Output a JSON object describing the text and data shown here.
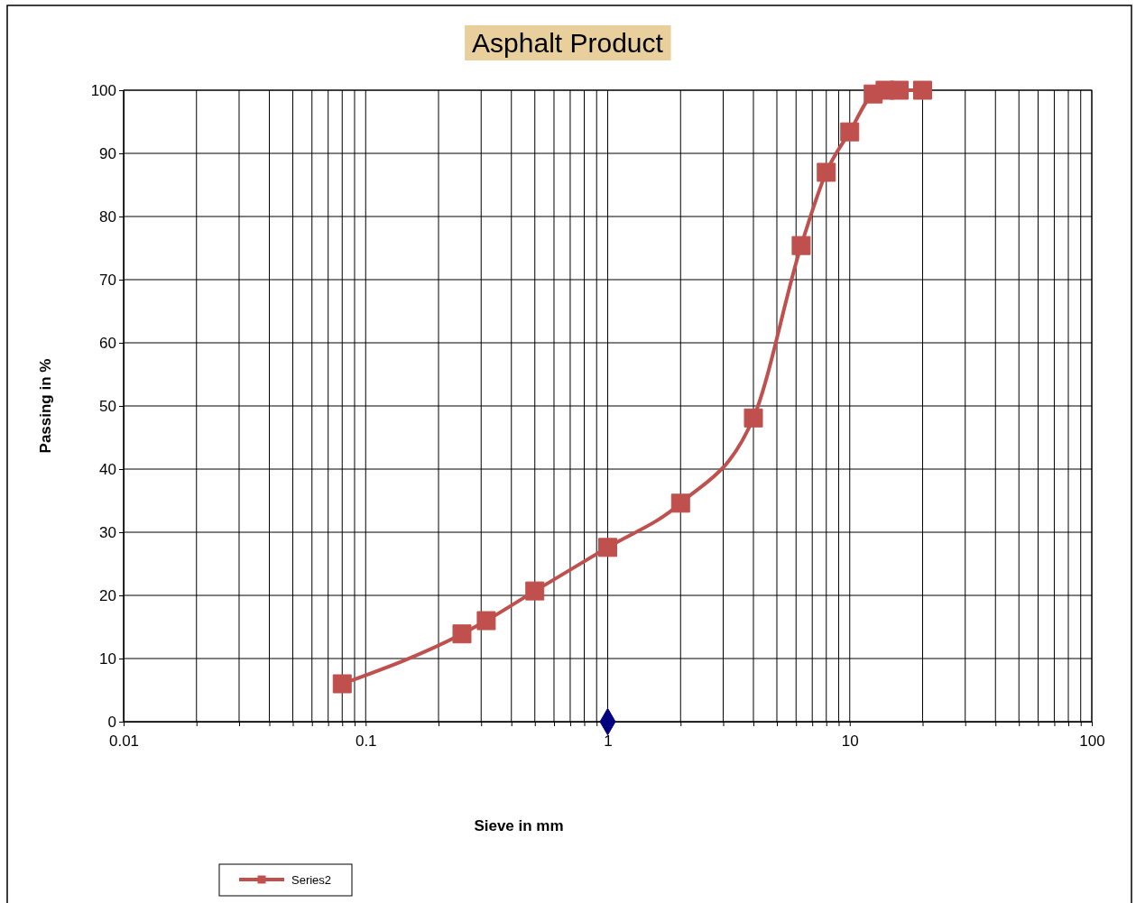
{
  "chart_data": {
    "type": "line",
    "title": "Asphalt Product",
    "xlabel": "Sieve in mm",
    "ylabel": "Passing in %",
    "log": "x",
    "grid": true,
    "legend": "bottom left",
    "line_style": "solid",
    "xlim": [
      0.01,
      100
    ],
    "ylim": [
      0,
      100
    ],
    "xticks": [
      {
        "value": 0.01,
        "label": "0.01"
      },
      {
        "value": 0.02,
        "label": null
      },
      {
        "value": 0.03,
        "label": null
      },
      {
        "value": 0.04,
        "label": null
      },
      {
        "value": 0.05,
        "label": null
      },
      {
        "value": 0.06,
        "label": null
      },
      {
        "value": 0.07,
        "label": null
      },
      {
        "value": 0.08,
        "label": null
      },
      {
        "value": 0.09,
        "label": null
      },
      {
        "value": 0.1,
        "label": "0.1"
      },
      {
        "value": 0.2,
        "label": null
      },
      {
        "value": 0.3,
        "label": null
      },
      {
        "value": 0.4,
        "label": null
      },
      {
        "value": 0.5,
        "label": null
      },
      {
        "value": 0.6,
        "label": null
      },
      {
        "value": 0.7,
        "label": null
      },
      {
        "value": 0.8,
        "label": null
      },
      {
        "value": 0.9,
        "label": null
      },
      1,
      {
        "value": 2,
        "label": null
      },
      {
        "value": 3,
        "label": null
      },
      {
        "value": 4,
        "label": null
      },
      {
        "value": 5,
        "label": null
      },
      {
        "value": 6,
        "label": null
      },
      {
        "value": 7,
        "label": null
      },
      {
        "value": 8,
        "label": null
      },
      {
        "value": 9,
        "label": null
      },
      10,
      {
        "value": 20,
        "label": null
      },
      {
        "value": 30,
        "label": null
      },
      {
        "value": 40,
        "label": null
      },
      {
        "value": 50,
        "label": null
      },
      {
        "value": 60,
        "label": null
      },
      {
        "value": 70,
        "label": null
      },
      {
        "value": 80,
        "label": null
      },
      {
        "value": 90,
        "label": null
      },
      100
    ],
    "yticks": [
      0,
      10,
      20,
      30,
      40,
      50,
      60,
      70,
      80,
      90,
      100
    ],
    "series": [
      {
        "type": "scatter",
        "marker": "diamond",
        "color": "#000080",
        "x": [
          1
        ],
        "values": [
          0
        ]
      },
      {
        "marker": "square",
        "name": "Series2",
        "color": "#c0504d",
        "x": [
          0.08,
          0.25,
          0.315,
          0.5,
          1,
          2,
          4,
          6.3,
          8,
          10,
          12.5,
          14,
          16,
          20
        ],
        "values": [
          6,
          13.9,
          16,
          20.7,
          27.6,
          34.6,
          48.1,
          75.4,
          87,
          93.4,
          99.4,
          100,
          100,
          100
        ]
      }
    ]
  }
}
